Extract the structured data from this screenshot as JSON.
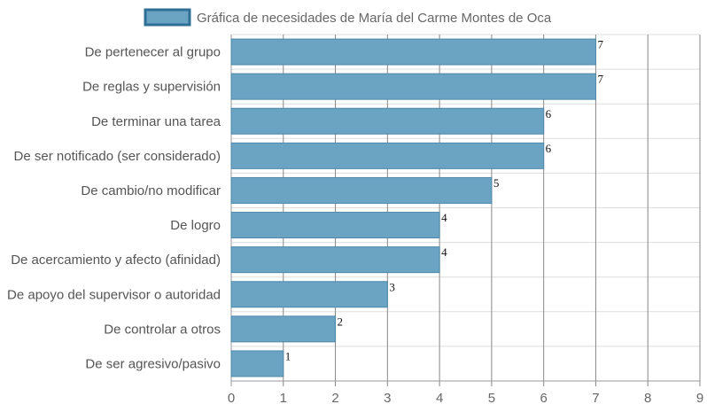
{
  "chart_data": {
    "type": "bar",
    "orientation": "horizontal",
    "categories": [
      "De pertenecer al grupo",
      "De reglas y supervisión",
      "De terminar una tarea",
      "De ser notificado (ser considerado)",
      "De cambio/no modificar",
      "De logro",
      "De acercamiento y afecto (afinidad)",
      "De apoyo del supervisor o autoridad",
      "De controlar a otros",
      "De ser agresivo/pasivo"
    ],
    "series": [
      {
        "name": "Gráfica de necesidades de María del Carme Montes de Oca",
        "values": [
          7,
          7,
          6,
          6,
          5,
          4,
          4,
          3,
          2,
          1
        ]
      }
    ],
    "xlim": [
      0,
      9
    ],
    "x_ticks": [
      "0",
      "1",
      "2",
      "3",
      "4",
      "5",
      "6",
      "7",
      "8",
      "9"
    ],
    "grid": true,
    "legend_position": "top",
    "colors": {
      "bar_fill": "#6ba3c3",
      "bar_stroke": "#4d88aa",
      "legend_fill": "#6ba3c3",
      "legend_stroke": "#2f6f96",
      "grid_major": "#888888",
      "grid_minor": "#dddddd"
    }
  }
}
